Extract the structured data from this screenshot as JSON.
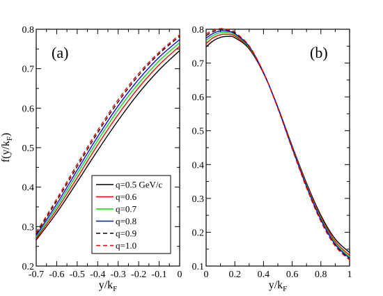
{
  "chart_data": [
    {
      "type": "line",
      "panel_label": "(a)",
      "xlabel": "y/k",
      "xlabel_sub": "F",
      "ylabel": "f(y/k",
      "ylabel_sub": "F",
      "ylabel_close": ")",
      "xlim": [
        -0.7,
        0
      ],
      "ylim": [
        0.2,
        0.8
      ],
      "xticks": [
        -0.7,
        -0.6,
        -0.5,
        -0.4,
        -0.3,
        -0.2,
        -0.1,
        0
      ],
      "xtick_labels": [
        "-0.7",
        "-0.6",
        "-0.5",
        "-0.4",
        "-0.3",
        "-0.2",
        "-0.1",
        "0"
      ],
      "yticks": [
        0.2,
        0.3,
        0.4,
        0.5,
        0.6,
        0.7,
        0.8
      ],
      "ytick_labels": [
        "0.2",
        "0.3",
        "0.4",
        "0.5",
        "0.6",
        "0.7",
        "0.8"
      ],
      "grid": false,
      "legend_position": "bottom-right",
      "series": [
        {
          "name": "q=0.5 GeV/c",
          "color": "#000000",
          "dash": "solid",
          "x": [
            -0.7,
            -0.6,
            -0.5,
            -0.4,
            -0.3,
            -0.2,
            -0.1,
            0
          ],
          "y": [
            0.266,
            0.335,
            0.413,
            0.493,
            0.569,
            0.638,
            0.697,
            0.746
          ]
        },
        {
          "name": "q=0.6",
          "color": "#ff0000",
          "dash": "solid",
          "x": [
            -0.7,
            -0.6,
            -0.5,
            -0.4,
            -0.3,
            -0.2,
            -0.1,
            0
          ],
          "y": [
            0.27,
            0.343,
            0.424,
            0.507,
            0.584,
            0.652,
            0.71,
            0.757
          ]
        },
        {
          "name": "q=0.7",
          "color": "#00dd00",
          "dash": "solid",
          "x": [
            -0.7,
            -0.6,
            -0.5,
            -0.4,
            -0.3,
            -0.2,
            -0.1,
            0
          ],
          "y": [
            0.274,
            0.35,
            0.434,
            0.518,
            0.596,
            0.663,
            0.72,
            0.766
          ]
        },
        {
          "name": "q=0.8",
          "color": "#0000ff",
          "dash": "solid",
          "x": [
            -0.7,
            -0.6,
            -0.5,
            -0.4,
            -0.3,
            -0.2,
            -0.1,
            0
          ],
          "y": [
            0.278,
            0.357,
            0.443,
            0.528,
            0.606,
            0.673,
            0.729,
            0.774
          ]
        },
        {
          "name": "q=0.9",
          "color": "#000000",
          "dash": "dashed",
          "x": [
            -0.7,
            -0.6,
            -0.5,
            -0.4,
            -0.3,
            -0.2,
            -0.1,
            0
          ],
          "y": [
            0.282,
            0.365,
            0.452,
            0.538,
            0.616,
            0.683,
            0.738,
            0.782
          ]
        },
        {
          "name": "q=1.0",
          "color": "#ff0000",
          "dash": "dashed",
          "x": [
            -0.7,
            -0.6,
            -0.5,
            -0.4,
            -0.3,
            -0.2,
            -0.1,
            0
          ],
          "y": [
            0.285,
            0.37,
            0.458,
            0.544,
            0.622,
            0.688,
            0.742,
            0.786
          ]
        }
      ]
    },
    {
      "type": "line",
      "panel_label": "(b)",
      "xlabel": "y/k",
      "xlabel_sub": "F",
      "xlim": [
        0,
        1
      ],
      "ylim": [
        0.1,
        0.8
      ],
      "xticks": [
        0,
        0.2,
        0.4,
        0.6,
        0.8,
        1
      ],
      "xtick_labels": [
        "0",
        "0.2",
        "0.4",
        "0.6",
        "0.8",
        "1"
      ],
      "yticks": [
        0.1,
        0.2,
        0.3,
        0.4,
        0.5,
        0.6,
        0.7,
        0.8
      ],
      "ytick_labels": [
        "0.1",
        "0.2",
        "0.3",
        "0.4",
        "0.5",
        "0.6",
        "0.7",
        "0.8"
      ],
      "grid": false,
      "series": [
        {
          "color": "#000000",
          "dash": "solid",
          "x": [
            0,
            0.05,
            0.1,
            0.15,
            0.2,
            0.3,
            0.4,
            0.5,
            0.6,
            0.7,
            0.8,
            0.9,
            1.0
          ],
          "y": [
            0.748,
            0.766,
            0.776,
            0.779,
            0.775,
            0.742,
            0.67,
            0.57,
            0.455,
            0.345,
            0.25,
            0.18,
            0.14
          ]
        },
        {
          "color": "#ff0000",
          "dash": "solid",
          "x": [
            0,
            0.05,
            0.1,
            0.15,
            0.2,
            0.3,
            0.4,
            0.5,
            0.6,
            0.7,
            0.8,
            0.9,
            1.0
          ],
          "y": [
            0.758,
            0.775,
            0.784,
            0.785,
            0.78,
            0.745,
            0.671,
            0.57,
            0.453,
            0.341,
            0.245,
            0.173,
            0.132
          ]
        },
        {
          "color": "#00dd00",
          "dash": "solid",
          "x": [
            0,
            0.05,
            0.1,
            0.15,
            0.2,
            0.3,
            0.4,
            0.5,
            0.6,
            0.7,
            0.8,
            0.9,
            1.0
          ],
          "y": [
            0.767,
            0.782,
            0.79,
            0.79,
            0.784,
            0.747,
            0.672,
            0.569,
            0.451,
            0.338,
            0.241,
            0.168,
            0.127
          ]
        },
        {
          "color": "#0000ff",
          "dash": "solid",
          "x": [
            0,
            0.05,
            0.1,
            0.15,
            0.2,
            0.3,
            0.4,
            0.5,
            0.6,
            0.7,
            0.8,
            0.9,
            1.0
          ],
          "y": [
            0.774,
            0.788,
            0.795,
            0.794,
            0.787,
            0.749,
            0.672,
            0.568,
            0.449,
            0.335,
            0.237,
            0.164,
            0.123
          ]
        },
        {
          "color": "#000000",
          "dash": "dashed",
          "x": [
            0,
            0.05,
            0.1,
            0.15,
            0.2,
            0.3,
            0.4,
            0.5,
            0.6,
            0.7,
            0.8,
            0.9,
            1.0
          ],
          "y": [
            0.781,
            0.793,
            0.799,
            0.797,
            0.789,
            0.75,
            0.672,
            0.567,
            0.447,
            0.333,
            0.234,
            0.161,
            0.12
          ]
        },
        {
          "color": "#ff0000",
          "dash": "dashed",
          "x": [
            0,
            0.05,
            0.1,
            0.15,
            0.2,
            0.3,
            0.4,
            0.5,
            0.6,
            0.7,
            0.8,
            0.9,
            1.0
          ],
          "y": [
            0.786,
            0.797,
            0.802,
            0.799,
            0.791,
            0.751,
            0.672,
            0.566,
            0.446,
            0.331,
            0.232,
            0.159,
            0.118
          ]
        }
      ]
    }
  ]
}
